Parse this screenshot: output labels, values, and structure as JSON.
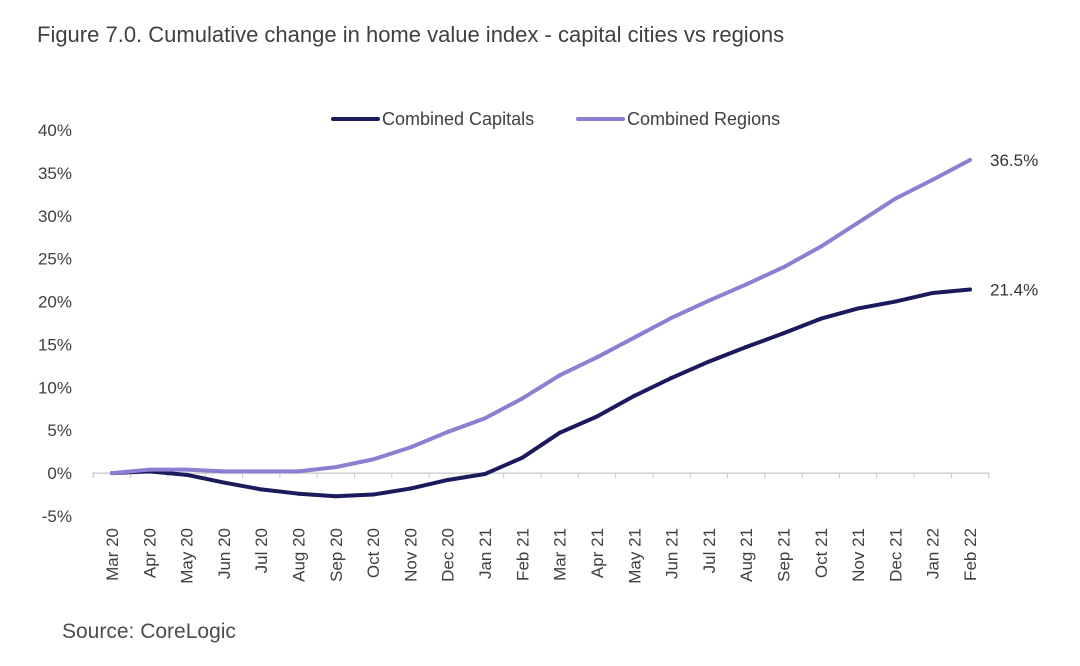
{
  "title": "Figure 7.0. Cumulative change in home value index - capital cities vs regions",
  "source": "Source: CoreLogic",
  "chart_data": {
    "type": "line",
    "title": "Figure 7.0. Cumulative change in home value index - capital cities vs regions",
    "xlabel": "",
    "ylabel": "",
    "ylim": [
      -5,
      40
    ],
    "yticks": [
      "-5%",
      "0%",
      "5%",
      "10%",
      "15%",
      "20%",
      "25%",
      "30%",
      "35%",
      "40%"
    ],
    "ytick_values": [
      -5,
      0,
      5,
      10,
      15,
      20,
      25,
      30,
      35,
      40
    ],
    "grid": false,
    "legend_position": "top",
    "categories": [
      "Mar 20",
      "Apr 20",
      "May 20",
      "Jun 20",
      "Jul 20",
      "Aug 20",
      "Sep 20",
      "Oct 20",
      "Nov 20",
      "Dec 20",
      "Jan 21",
      "Feb 21",
      "Mar 21",
      "Apr 21",
      "May 21",
      "Jun 21",
      "Jul 21",
      "Aug 21",
      "Sep 21",
      "Oct 21",
      "Nov 21",
      "Dec 21",
      "Jan 22",
      "Feb 22"
    ],
    "series": [
      {
        "name": "Combined Capitals",
        "color": "#1b1a5c",
        "values": [
          0.0,
          0.2,
          -0.2,
          -1.1,
          -1.9,
          -2.4,
          -2.7,
          -2.5,
          -1.8,
          -0.8,
          -0.1,
          1.8,
          4.7,
          6.6,
          9.0,
          11.1,
          13.0,
          14.7,
          16.3,
          18.0,
          19.2,
          20.0,
          21.0,
          21.4
        ],
        "end_label": "21.4%"
      },
      {
        "name": "Combined Regions",
        "color": "#8c7fd2",
        "values": [
          0.0,
          0.4,
          0.4,
          0.2,
          0.2,
          0.2,
          0.7,
          1.6,
          3.0,
          4.8,
          6.4,
          8.7,
          11.4,
          13.5,
          15.8,
          18.1,
          20.1,
          22.0,
          24.0,
          26.4,
          29.2,
          32.0,
          34.2,
          36.5
        ],
        "end_label": "36.5%"
      }
    ]
  }
}
